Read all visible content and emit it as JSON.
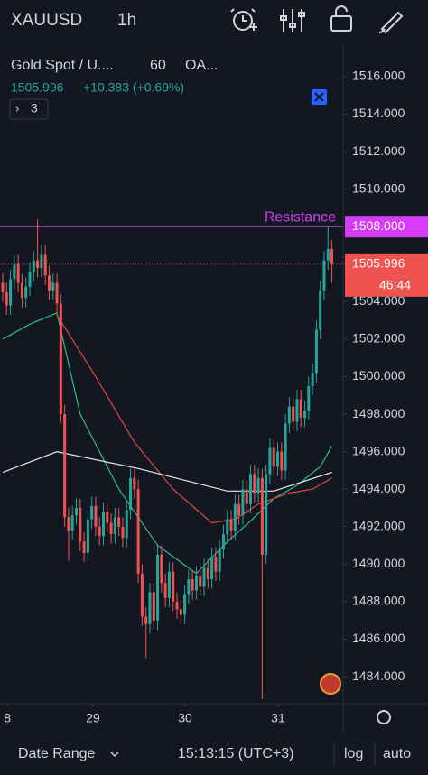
{
  "toolbar": {
    "symbol": "XAUUSD",
    "interval": "1h"
  },
  "chart_data": {
    "type": "candlestick",
    "legend": {
      "name": "Gold Spot / U....",
      "interval": "60",
      "source": "OA...",
      "change": "+10.383 (+0.69%)",
      "indicators_count": "3"
    },
    "up_color": "#26a69a",
    "down_color": "#ef5350",
    "open": [
      1505.0,
      1504.5,
      1503.8,
      1505.2,
      1506.0,
      1505.0,
      1504.2,
      1504.8,
      1505.6,
      1506.2,
      1505.8,
      1506.5,
      1505.4,
      1504.6,
      1505.0,
      1503.9,
      1498.0,
      1492.5,
      1491.8,
      1492.6,
      1493.0,
      1491.2,
      1490.6,
      1492.4,
      1493.1,
      1492.0,
      1491.5,
      1492.8,
      1492.2,
      1491.6,
      1492.5,
      1492.0,
      1491.4,
      1492.9,
      1494.6,
      1494.0,
      1489.5,
      1487.2,
      1486.8,
      1488.5,
      1487.0,
      1490.5,
      1489.0,
      1488.2,
      1489.6,
      1488.0,
      1487.6,
      1487.3,
      1488.4,
      1489.2,
      1488.6,
      1489.4,
      1488.8,
      1489.8,
      1489.2,
      1490.4,
      1489.6,
      1490.8,
      1491.6,
      1492.4,
      1491.8,
      1493.2,
      1492.6,
      1494.0,
      1493.2,
      1494.8,
      1493.8,
      1494.6,
      1490.5,
      1494.8,
      1496.2,
      1495.2,
      1496.0,
      1495.0,
      1497.5,
      1498.4,
      1497.6,
      1498.8,
      1497.8,
      1498.2,
      1499.5,
      1500.2,
      1502.5,
      1504.6,
      1506.2,
      1506.8
    ],
    "high": [
      1505.5,
      1505.0,
      1505.7,
      1506.5,
      1506.5,
      1505.5,
      1505.3,
      1506.1,
      1506.7,
      1508.4,
      1507.0,
      1507.0,
      1505.9,
      1505.5,
      1505.5,
      1504.4,
      1498.5,
      1493.0,
      1493.1,
      1493.5,
      1493.5,
      1491.7,
      1492.9,
      1493.6,
      1493.6,
      1492.5,
      1493.3,
      1493.3,
      1492.7,
      1493.0,
      1493.0,
      1492.5,
      1493.4,
      1495.1,
      1495.1,
      1494.5,
      1490.0,
      1487.7,
      1489.0,
      1489.0,
      1491.0,
      1491.0,
      1489.5,
      1490.1,
      1490.1,
      1488.5,
      1488.1,
      1488.9,
      1489.7,
      1489.7,
      1489.9,
      1489.9,
      1490.3,
      1490.3,
      1490.9,
      1490.9,
      1491.3,
      1492.1,
      1492.9,
      1492.9,
      1493.7,
      1493.7,
      1494.5,
      1494.5,
      1495.3,
      1495.3,
      1495.1,
      1495.1,
      1495.3,
      1496.7,
      1496.7,
      1496.5,
      1496.5,
      1498.0,
      1498.9,
      1498.9,
      1499.3,
      1499.3,
      1498.7,
      1500.0,
      1500.7,
      1503.0,
      1505.1,
      1506.7,
      1508.0,
      1507.3
    ],
    "low": [
      1504.0,
      1503.3,
      1503.3,
      1504.7,
      1504.5,
      1503.7,
      1503.7,
      1504.3,
      1505.1,
      1505.3,
      1505.3,
      1504.9,
      1504.1,
      1504.1,
      1503.4,
      1497.5,
      1492.0,
      1490.2,
      1491.3,
      1492.1,
      1490.7,
      1490.1,
      1490.1,
      1491.9,
      1491.5,
      1491.0,
      1491.0,
      1491.7,
      1491.1,
      1491.1,
      1491.5,
      1490.9,
      1490.9,
      1492.4,
      1493.5,
      1489.0,
      1486.7,
      1485.0,
      1486.3,
      1486.5,
      1486.5,
      1488.5,
      1487.7,
      1487.7,
      1487.5,
      1487.1,
      1486.8,
      1486.8,
      1487.9,
      1488.1,
      1488.1,
      1488.3,
      1488.3,
      1488.7,
      1488.7,
      1489.1,
      1489.1,
      1490.3,
      1491.1,
      1491.3,
      1491.3,
      1492.1,
      1492.1,
      1492.7,
      1492.7,
      1493.3,
      1493.3,
      1482.8,
      1490.0,
      1494.3,
      1494.7,
      1494.7,
      1494.5,
      1494.5,
      1497.0,
      1497.1,
      1497.1,
      1497.3,
      1497.3,
      1497.7,
      1499.0,
      1499.7,
      1502.0,
      1504.1,
      1505.7,
      1505.0
    ],
    "close": [
      1504.5,
      1503.8,
      1505.2,
      1506.0,
      1505.0,
      1504.2,
      1504.8,
      1505.6,
      1506.2,
      1505.8,
      1506.5,
      1505.4,
      1504.6,
      1505.0,
      1503.9,
      1498.0,
      1492.5,
      1491.8,
      1492.6,
      1493.0,
      1491.2,
      1490.6,
      1492.4,
      1493.1,
      1492.0,
      1491.5,
      1492.8,
      1492.2,
      1491.6,
      1492.5,
      1492.0,
      1491.4,
      1492.9,
      1494.6,
      1494.0,
      1489.5,
      1487.2,
      1486.8,
      1488.5,
      1487.0,
      1490.5,
      1489.0,
      1488.2,
      1489.6,
      1488.0,
      1487.6,
      1487.3,
      1488.4,
      1489.2,
      1488.6,
      1489.4,
      1488.8,
      1489.8,
      1489.2,
      1490.4,
      1489.6,
      1490.8,
      1491.6,
      1492.4,
      1491.8,
      1493.2,
      1492.6,
      1494.0,
      1493.2,
      1494.8,
      1493.8,
      1494.6,
      1490.5,
      1494.8,
      1496.2,
      1495.2,
      1496.0,
      1495.0,
      1497.5,
      1498.4,
      1497.6,
      1498.8,
      1497.8,
      1498.2,
      1499.5,
      1500.2,
      1502.5,
      1504.6,
      1506.2,
      1506.8,
      1505.996
    ],
    "ma_lines": [
      {
        "color": "#2bbb8f",
        "x": [
          0,
          7,
          14,
          20,
          30,
          40,
          50,
          58,
          64,
          70,
          76,
          82,
          85
        ],
        "values": [
          1502.0,
          1502.8,
          1503.4,
          1498.0,
          1494.0,
          1491.0,
          1489.5,
          1491.2,
          1492.3,
          1493.5,
          1494.2,
          1495.2,
          1496.3
        ]
      },
      {
        "color": "#e0483e",
        "x": [
          14,
          24,
          34,
          44,
          54,
          60,
          66,
          74,
          80,
          85
        ],
        "values": [
          1503.3,
          1500.0,
          1496.5,
          1494.0,
          1492.2,
          1492.4,
          1493.2,
          1493.8,
          1494.0,
          1494.6
        ]
      },
      {
        "color": "#e8e8e8",
        "x": [
          0,
          14,
          35,
          58,
          70,
          85
        ],
        "values": [
          1494.9,
          1496.0,
          1495.1,
          1493.9,
          1493.9,
          1494.9
        ]
      }
    ],
    "hline": {
      "label": "Resistance",
      "value": 1508.0,
      "value_label": "1508.000",
      "color": "#d63cf5"
    },
    "countdown": "46:44",
    "xlim": [
      -0.7,
      87.9
    ],
    "xticks": [
      {
        "value": 1.2,
        "label": "8"
      },
      {
        "value": 23.3,
        "label": "29"
      },
      {
        "value": 47.1,
        "label": "30"
      },
      {
        "value": 71.1,
        "label": "31"
      }
    ],
    "ylim": [
      1482.56,
      1517.68
    ],
    "yticks": [
      {
        "value": 1484,
        "label": "1484.000"
      },
      {
        "value": 1486,
        "label": "1486.000"
      },
      {
        "value": 1488,
        "label": "1488.000"
      },
      {
        "value": 1490,
        "label": "1490.000"
      },
      {
        "value": 1492,
        "label": "1492.000"
      },
      {
        "value": 1494,
        "label": "1494.000"
      },
      {
        "value": 1496,
        "label": "1496.000"
      },
      {
        "value": 1498,
        "label": "1498.000"
      },
      {
        "value": 1500,
        "label": "1500.000"
      },
      {
        "value": 1502,
        "label": "1502.000"
      },
      {
        "value": 1504,
        "label": "1504.000"
      },
      {
        "value": 1506,
        "label": "1506.000"
      },
      {
        "value": 1508,
        "label": "1508.000"
      },
      {
        "value": 1510,
        "label": "1510.000"
      },
      {
        "value": 1512,
        "label": "1512.000"
      },
      {
        "value": 1514,
        "label": "1514.000"
      },
      {
        "value": 1516,
        "label": "1516.000"
      }
    ],
    "grid": false
  },
  "footer": {
    "date_range": "Date Range",
    "time": "15:13:15 (UTC+3)",
    "log": "log",
    "auto": "auto"
  }
}
